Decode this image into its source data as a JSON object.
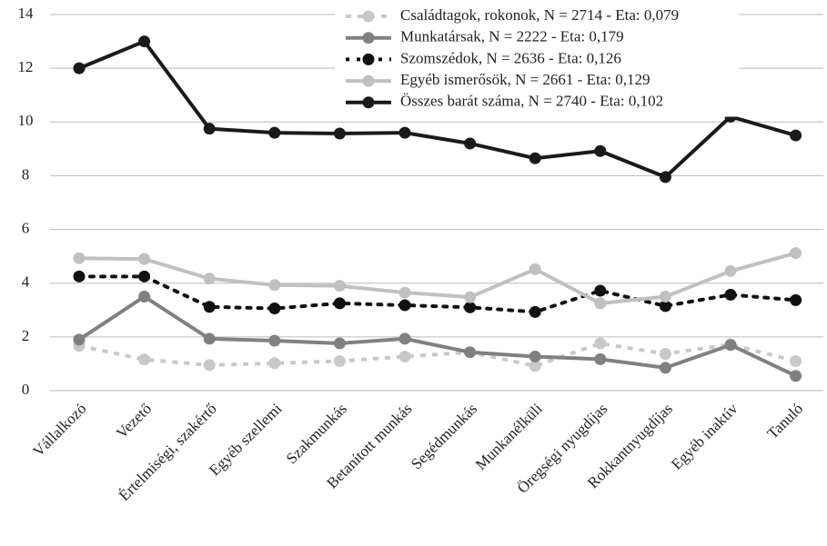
{
  "chart_data": {
    "type": "line",
    "categories": [
      "Vállalkozó",
      "Vezető",
      "Értelmiségi, szakértő",
      "Egyéb szellemi",
      "Szakmunkás",
      "Betanított munkás",
      "Segédmunkás",
      "Munkanélküli",
      "Öregségi nyugdíjas",
      "Rokkantnyugdíjas",
      "Egyéb inaktív",
      "Tanuló"
    ],
    "series": [
      {
        "name": "Családtagok, rokonok, N = 2714 - Eta: 0,079",
        "color": "#c8c8c8",
        "dash": "dashed",
        "values": [
          1.67,
          1.16,
          0.95,
          1.02,
          1.1,
          1.27,
          1.43,
          0.92,
          1.76,
          1.37,
          1.72,
          1.1
        ]
      },
      {
        "name": "Munkatársak, N = 2222 - Eta: 0,179",
        "color": "#808080",
        "dash": "solid",
        "values": [
          1.9,
          3.5,
          1.93,
          1.86,
          1.76,
          1.93,
          1.43,
          1.27,
          1.17,
          0.85,
          1.7,
          0.55
        ]
      },
      {
        "name": "Szomszédok, N = 2636 - Eta: 0,126",
        "color": "#111111",
        "dash": "dotted",
        "values": [
          4.25,
          4.25,
          3.12,
          3.06,
          3.25,
          3.18,
          3.1,
          2.93,
          3.72,
          3.15,
          3.57,
          3.37
        ]
      },
      {
        "name": "Egyéb ismerősök, N = 2661 - Eta: 0,129",
        "color": "#c0c0c0",
        "dash": "solid",
        "values": [
          4.93,
          4.9,
          4.17,
          3.93,
          3.9,
          3.65,
          3.48,
          4.52,
          3.25,
          3.5,
          4.45,
          5.12
        ]
      },
      {
        "name": "Összes barát száma, N = 2740 - Eta: 0,102",
        "color": "#1a1a1a",
        "dash": "solid",
        "values": [
          12.0,
          13.0,
          9.75,
          9.6,
          9.57,
          9.6,
          9.2,
          8.65,
          8.92,
          7.95,
          10.2,
          9.5
        ]
      }
    ],
    "ylim": [
      0,
      14
    ],
    "yticks": [
      0,
      2,
      4,
      6,
      8,
      10,
      12,
      14
    ],
    "grid": true,
    "legend": "upper right"
  }
}
